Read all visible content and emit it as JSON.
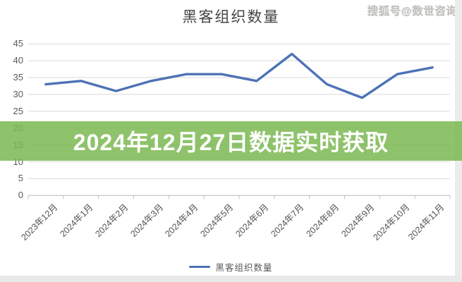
{
  "page": {
    "title": "黑客组织数量",
    "watermark": "搜狐号@数世咨询",
    "banner": {
      "text": "2024年12月27日数据实时获取",
      "bg_color": "#8fc36b",
      "text_color": "#ffffff"
    }
  },
  "chart_data": {
    "type": "line",
    "title": "黑客组织数量",
    "categories": [
      "2023年12月",
      "2024年1月",
      "2024年2月",
      "2024年3月",
      "2024年4月",
      "2024年5月",
      "2024年6月",
      "2024年7月",
      "2024年8月",
      "2024年9月",
      "2024年10月",
      "2024年11月"
    ],
    "series": [
      {
        "name": "黑客组织数量",
        "values": [
          33,
          34,
          31,
          34,
          36,
          36,
          34,
          42,
          33,
          29,
          36,
          38
        ],
        "color": "#4d72b6"
      }
    ],
    "ylim": [
      0,
      45
    ],
    "ytick_step": 5,
    "yticks": [
      0,
      5,
      10,
      15,
      20,
      25,
      30,
      35,
      40,
      45
    ],
    "grid": true,
    "legend_position": "bottom"
  },
  "legend": {
    "label": "黑客组织数量"
  },
  "colors": {
    "grid": "#d9d9d9",
    "axis": "#bfbfbf",
    "tick_label": "#595959",
    "line": "#4d72b6",
    "banner_green": "#8fc36b"
  }
}
